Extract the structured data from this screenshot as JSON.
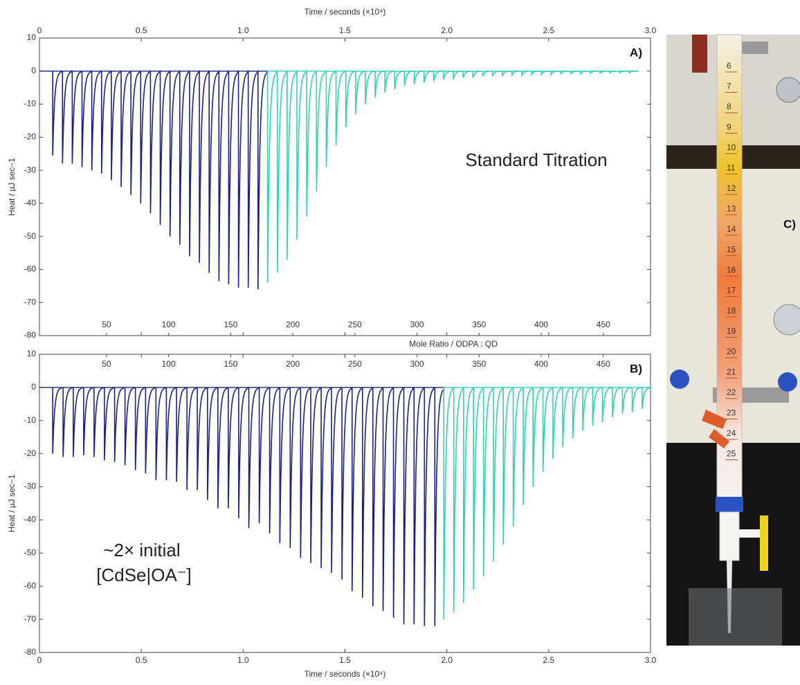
{
  "chart_data": [
    {
      "type": "line",
      "panel_label": "A)",
      "annotations": [
        "Standard Titration"
      ],
      "x_label": "Time / seconds (×10⁴)",
      "x_axis_position": "top",
      "y_label": "Heat / µJ sec−1",
      "xlim": [
        0,
        3
      ],
      "xticks": [
        0,
        0.5,
        {
          "value": 1,
          "label": "1.0"
        },
        1.5,
        {
          "value": 2,
          "label": "2.0"
        },
        2.5,
        {
          "value": 3,
          "label": "3.0"
        }
      ],
      "x2lim": [
        -4,
        488
      ],
      "x2ticks": [
        50,
        100,
        150,
        200,
        250,
        300,
        350,
        400,
        450
      ],
      "ylim": [
        -80,
        10
      ],
      "yticks": [
        10,
        0,
        -10,
        -20,
        -30,
        -40,
        -50,
        -60,
        -70,
        -80
      ],
      "series": [
        {
          "color": "#1c1f8a",
          "x": [
            0.065,
            0.113,
            0.161,
            0.209,
            0.257,
            0.305,
            0.353,
            0.401,
            0.449,
            0.497,
            0.545,
            0.593,
            0.641,
            0.689,
            0.737,
            0.785,
            0.833,
            0.881,
            0.929,
            0.977,
            1.025,
            1.073
          ],
          "values": [
            -25.5,
            -28,
            -28,
            -29,
            -30,
            -31,
            -33,
            -35,
            -37.5,
            -40,
            -43,
            -46.5,
            -50,
            -52.5,
            -56,
            -58,
            -61,
            -63.5,
            -64.5,
            -65.5,
            -65.5,
            -66
          ]
        },
        {
          "color": "#2fd3b3",
          "x": [
            1.12,
            1.168,
            1.216,
            1.264,
            1.312,
            1.36,
            1.408,
            1.456,
            1.504,
            1.552,
            1.6,
            1.648,
            1.696,
            1.744,
            1.792,
            1.84,
            1.888,
            1.936,
            1.984,
            2.032,
            2.08,
            2.128,
            2.176,
            2.224,
            2.272,
            2.32,
            2.368,
            2.416,
            2.464,
            2.512,
            2.56,
            2.608,
            2.656,
            2.704,
            2.752,
            2.8,
            2.848,
            2.896
          ],
          "values": [
            -64,
            -61,
            -57,
            -51,
            -44,
            -36.5,
            -29,
            -22.5,
            -17,
            -13,
            -10,
            -8,
            -6.5,
            -5.5,
            -4.5,
            -4,
            -3.5,
            -3,
            -2.5,
            -2.5,
            -2,
            -2,
            -1.5,
            -1.5,
            -1.5,
            -1.2,
            -1.2,
            -1,
            -1,
            -1,
            -0.8,
            -0.8,
            -0.8,
            -0.6,
            -0.6,
            -0.5,
            -0.5,
            -0.5
          ]
        }
      ]
    },
    {
      "type": "line",
      "panel_label": "B)",
      "annotations": [
        "~2× initial",
        "[CdSe|OA⁻]"
      ],
      "x_label": "Time / seconds (×10⁴)",
      "x_axis_position": "bottom",
      "y_label": "Heat / µJ sec−1",
      "x2_label": "Mole Ratio / ODPA : QD",
      "xlim": [
        0,
        3
      ],
      "xticks": [
        0,
        0.5,
        {
          "value": 1,
          "label": "1.0"
        },
        1.5,
        {
          "value": 2,
          "label": "2.0"
        },
        2.5,
        {
          "value": 3,
          "label": "3.0"
        }
      ],
      "x2lim": [
        -4,
        488
      ],
      "x2ticks": [
        50,
        100,
        150,
        200,
        250,
        300,
        350,
        400,
        450
      ],
      "ylim": [
        -80,
        10
      ],
      "yticks": [
        10,
        0,
        -10,
        -20,
        -30,
        -40,
        -50,
        -60,
        -70,
        -80
      ],
      "series": [
        {
          "color": "#1c1f8a",
          "x": [
            0.065,
            0.116,
            0.166,
            0.217,
            0.268,
            0.319,
            0.369,
            0.42,
            0.471,
            0.521,
            0.572,
            0.623,
            0.673,
            0.724,
            0.775,
            0.825,
            0.876,
            0.927,
            0.978,
            1.028,
            1.079,
            1.13,
            1.18,
            1.231,
            1.282,
            1.332,
            1.383,
            1.434,
            1.485,
            1.535,
            1.586,
            1.637,
            1.687,
            1.738,
            1.789,
            1.839,
            1.89,
            1.941
          ],
          "values": [
            -20,
            -21,
            -21,
            -20.5,
            -21,
            -22,
            -22.5,
            -23.5,
            -25,
            -26,
            -28,
            -28,
            -28.5,
            -31,
            -31,
            -34,
            -36.5,
            -36.5,
            -39.5,
            -42.5,
            -41,
            -44,
            -47,
            -48.5,
            -51.5,
            -53,
            -54.5,
            -56,
            -58,
            -61.5,
            -63.5,
            -66,
            -67.5,
            -69.5,
            -71.5,
            -71.5,
            -72,
            -72
          ]
        },
        {
          "color": "#2fd3b3",
          "x": [
            1.985,
            2.034,
            2.082,
            2.131,
            2.18,
            2.229,
            2.277,
            2.326,
            2.375,
            2.423,
            2.472,
            2.521,
            2.569,
            2.618,
            2.667,
            2.716,
            2.764,
            2.813,
            2.862,
            2.91,
            2.959
          ],
          "values": [
            -70,
            -68,
            -65,
            -61,
            -57,
            -52.5,
            -47.5,
            -42,
            -35.5,
            -30,
            -25.5,
            -21.5,
            -18,
            -15.5,
            -13,
            -11.5,
            -10.5,
            -9,
            -8,
            -7.5,
            -6.5
          ]
        }
      ]
    }
  ],
  "photo": {
    "panel_label": "C)",
    "graduations": [
      "6",
      "7",
      "8",
      "9",
      "10",
      "11",
      "12",
      "13",
      "14",
      "15",
      "16",
      "17",
      "18",
      "19",
      "20",
      "21",
      "22",
      "23",
      "24",
      "25"
    ]
  }
}
